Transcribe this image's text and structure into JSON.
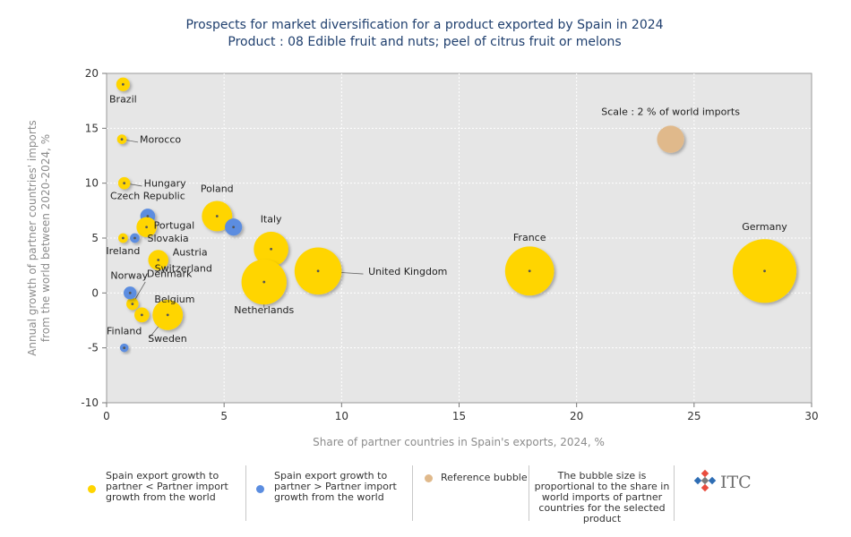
{
  "chart_data": {
    "type": "scatter",
    "title": "Prospects for market diversification for a product exported by Spain in 2024",
    "subtitle": "Product : 08 Edible fruit and nuts; peel of citrus fruit or melons",
    "xlabel": "Share of partner countries in Spain's exports, 2024, %",
    "ylabel_line1": "Annual growth of partner countries' imports",
    "ylabel_line2": "from the world between 2020-2024, %",
    "xlim": [
      0,
      30
    ],
    "ylim": [
      -10,
      20
    ],
    "x_ticks": [
      0,
      5,
      10,
      15,
      20,
      25,
      30
    ],
    "y_ticks": [
      -10,
      -5,
      0,
      5,
      10,
      15,
      20
    ],
    "x_tick_labels": [
      "0",
      "5",
      "10",
      "15",
      "20",
      "25",
      "30"
    ],
    "y_tick_labels": [
      "-10",
      "-5",
      "0",
      "5",
      "10",
      "15",
      "20"
    ],
    "grid": true,
    "colors": {
      "below": "#FFD500",
      "above": "#5B8DE0",
      "reference": "#E0B98B"
    },
    "points": [
      {
        "name": "Brazil",
        "x": 0.7,
        "y": 19,
        "size": 0.1,
        "group": "below"
      },
      {
        "name": "Morocco",
        "x": 0.65,
        "y": 14,
        "size": 0.05,
        "group": "below"
      },
      {
        "name": "Hungary",
        "x": 0.75,
        "y": 10,
        "size": 0.08,
        "group": "below"
      },
      {
        "name": "Czech Republic",
        "x": 1.75,
        "y": 7,
        "size": 0.12,
        "group": "above"
      },
      {
        "name": "Portugal",
        "x": 1.7,
        "y": 6,
        "size": 0.22,
        "group": "below"
      },
      {
        "name": "Slovakia",
        "x": 1.2,
        "y": 5,
        "size": 0.05,
        "group": "above"
      },
      {
        "name": "Ireland",
        "x": 0.7,
        "y": 5,
        "size": 0.05,
        "group": "below"
      },
      {
        "name": "Austria",
        "x": 2.2,
        "y": 3,
        "size": 0.22,
        "group": "below"
      },
      {
        "name": "Poland",
        "x": 4.7,
        "y": 7,
        "size": 0.5,
        "group": "below"
      },
      {
        "name": "Switzerland",
        "x": 5.4,
        "y": 6,
        "size": 0.16,
        "group": "above"
      },
      {
        "name": "Italy",
        "x": 7.0,
        "y": 4,
        "size": 0.65,
        "group": "below"
      },
      {
        "name": "Netherlands",
        "x": 6.7,
        "y": 1,
        "size": 1.1,
        "group": "below"
      },
      {
        "name": "United Kingdom",
        "x": 9.0,
        "y": 2,
        "size": 1.2,
        "group": "below"
      },
      {
        "name": "France",
        "x": 18.0,
        "y": 2,
        "size": 1.3,
        "group": "below"
      },
      {
        "name": "Germany",
        "x": 28.0,
        "y": 2,
        "size": 2.2,
        "group": "below"
      },
      {
        "name": "Denmark",
        "x": 1.1,
        "y": -1,
        "size": 0.08,
        "group": "below"
      },
      {
        "name": "Norway",
        "x": 1.0,
        "y": 0,
        "size": 0.09,
        "group": "above"
      },
      {
        "name": "Belgium",
        "x": 1.5,
        "y": -2,
        "size": 0.12,
        "group": "below"
      },
      {
        "name": "Sweden",
        "x": 2.6,
        "y": -2,
        "size": 0.5,
        "group": "below"
      },
      {
        "name": "Finland",
        "x": 0.75,
        "y": -5,
        "size": 0.04,
        "group": "above"
      }
    ],
    "reference_bubble": {
      "x": 24.0,
      "y": 14,
      "size": 0.4,
      "label": "Scale : 2 % of world imports"
    }
  },
  "legend": {
    "item1": "Spain export growth to partner < Partner import growth from the world",
    "item2": "Spain export growth to partner > Partner import growth from the world",
    "item3": "Reference bubble",
    "note": "The bubble size is proportional to the share in world imports of partner countries for the selected product"
  },
  "logo": {
    "text": "ITC"
  }
}
